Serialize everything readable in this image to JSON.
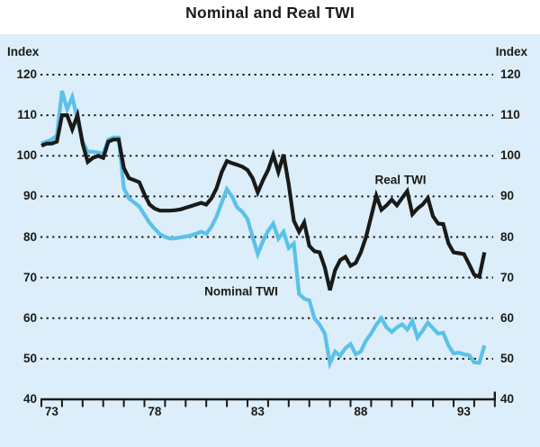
{
  "title": "Nominal and Real TWI",
  "y_axis": {
    "left_unit": "Index",
    "right_unit": "Index",
    "ticks": [
      120,
      110,
      100,
      90,
      80,
      70,
      60,
      50,
      40
    ]
  },
  "x_axis": {
    "tick_years": [
      73,
      74,
      75,
      76,
      77,
      78,
      79,
      80,
      81,
      82,
      83,
      84,
      85,
      86,
      87,
      88,
      89,
      90,
      91,
      92,
      93,
      94,
      95
    ],
    "label_years": [
      73,
      78,
      83,
      88,
      93
    ]
  },
  "series_labels": {
    "real": "Real TWI",
    "nominal": "Nominal TWI"
  },
  "colors": {
    "panel_bg": "#dceef9",
    "real_line": "#1a1a18",
    "nominal_line": "#5ac1e9",
    "grid": "#1a1a18",
    "axis": "#1a1a18",
    "text": "#1a1a18"
  },
  "chart_data": {
    "type": "line",
    "title": "Nominal and Real TWI",
    "ylabel": "Index",
    "ylim": [
      40,
      120
    ],
    "xlim": [
      1973,
      1995
    ],
    "x_unit": "year, quarterly observations",
    "x_start": 1973.0,
    "x_step": 0.25,
    "grid": "horizontal-dotted",
    "series": [
      {
        "name": "Real TWI",
        "color_key": "real_line",
        "values": [
          102.5,
          103,
          103,
          103.5,
          110,
          110,
          106.5,
          110,
          103,
          98.5,
          99.5,
          100,
          99.5,
          103.5,
          104,
          104,
          97,
          94.5,
          94,
          93.5,
          90.5,
          88,
          87,
          86.5,
          86.5,
          86.5,
          86.6,
          86.8,
          87.2,
          87.6,
          88,
          88.4,
          88,
          89.5,
          92,
          96,
          98.7,
          98.2,
          97.8,
          97.3,
          96.5,
          94.5,
          91,
          94,
          96.5,
          100.2,
          96,
          100.3,
          93,
          84,
          81.3,
          83.6,
          77.8,
          76.5,
          76.2,
          72.5,
          66.9,
          71.8,
          74.3,
          75.1,
          72.9,
          73.6,
          76.2,
          80,
          85,
          90.2,
          86.7,
          87.8,
          89.2,
          87.8,
          89.6,
          91.3,
          85.6,
          87,
          88,
          89.6,
          85.1,
          83.3,
          83.2,
          78.4,
          76.2,
          76,
          75.8,
          73.3,
          70.7,
          70.2,
          76.2
        ]
      },
      {
        "name": "Nominal TWI",
        "color_key": "nominal_line",
        "values": [
          103,
          103.5,
          104,
          105,
          116,
          111.5,
          114.5,
          109,
          103.5,
          101,
          101,
          100.8,
          100.5,
          104,
          104.5,
          104.5,
          92,
          89.5,
          88.5,
          87.5,
          85.5,
          83.5,
          82,
          80.7,
          80,
          79.6,
          79.7,
          79.9,
          80.1,
          80.4,
          80.8,
          81.3,
          80.8,
          82.5,
          85,
          88.5,
          91.8,
          90,
          87.3,
          86.2,
          84.4,
          80,
          75.8,
          79,
          81.5,
          83.3,
          79.6,
          81.3,
          77.3,
          78.4,
          66,
          64.8,
          64.4,
          60,
          58.4,
          56.2,
          48.9,
          51.8,
          50.7,
          52.6,
          53.6,
          51.1,
          51.8,
          54.5,
          56.2,
          58.4,
          60,
          57.7,
          56.6,
          57.7,
          58.5,
          57.2,
          59.3,
          55.2,
          56.9,
          58.9,
          57.5,
          56.2,
          56.4,
          53.3,
          51.3,
          51.5,
          51.1,
          50.9,
          49.1,
          49,
          53.3
        ]
      }
    ]
  }
}
